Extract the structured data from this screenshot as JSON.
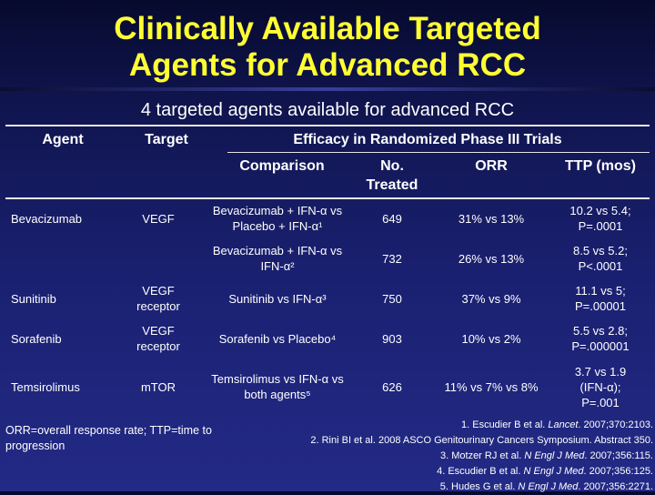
{
  "slide": {
    "title_line1": "Clinically Available Targeted",
    "title_line2": "Agents for Advanced RCC",
    "subtitle": "4 targeted agents available for advanced RCC"
  },
  "table": {
    "headers": {
      "agent": "Agent",
      "target": "Target",
      "efficacy": "Efficacy in Randomized Phase III Trials",
      "comparison": "Comparison",
      "no_treated_1": "No.",
      "no_treated_2": "Treated",
      "orr": "ORR",
      "ttp": "TTP (mos)"
    },
    "rows": [
      {
        "agent": "Bevacizumab",
        "target": "VEGF",
        "comparison_1": "Bevacizumab + IFN-α vs",
        "comparison_2": "Placebo + IFN-α¹",
        "treated": "649",
        "orr": "31% vs 13%",
        "ttp_1": "10.2 vs 5.4;",
        "ttp_2": "P=.0001"
      },
      {
        "agent": "",
        "target": "",
        "comparison_1": "Bevacizumab + IFN-α vs",
        "comparison_2": "IFN-α²",
        "treated": "732",
        "orr": "26% vs 13%",
        "ttp_1": "8.5 vs 5.2;",
        "ttp_2": "P<.0001"
      },
      {
        "agent": "Sunitinib",
        "target_1": "VEGF",
        "target_2": "receptor",
        "comparison": "Sunitinib vs IFN-α³",
        "treated": "750",
        "orr": "37% vs 9%",
        "ttp_1": "11.1 vs 5;",
        "ttp_2": "P=.00001"
      },
      {
        "agent": "Sorafenib",
        "target_1": "VEGF",
        "target_2": "receptor",
        "comparison": "Sorafenib vs Placebo⁴",
        "treated": "903",
        "orr": "10% vs 2%",
        "ttp_1": "5.5 vs 2.8;",
        "ttp_2": "P=.000001"
      },
      {
        "agent": "Temsirolimus",
        "target": "mTOR",
        "comparison_1": "Temsirolimus vs IFN-α vs",
        "comparison_2": "both agents⁵",
        "treated": "626",
        "orr": "11% vs 7% vs 8%",
        "ttp_1": "3.7 vs 1.9",
        "ttp_2": "(IFN-α);",
        "ttp_3": "P=.001"
      }
    ]
  },
  "footnote": "ORR=overall response rate; TTP=time to progression",
  "references": [
    {
      "pre": "1. Escudier B et al. ",
      "journal": "Lancet",
      "post": ". 2007;370:2103."
    },
    {
      "pre": "2. Rini BI et al. 2008 ASCO Genitourinary Cancers Symposium. Abstract 350.",
      "journal": "",
      "post": ""
    },
    {
      "pre": "3. Motzer RJ et al. ",
      "journal": "N Engl J Med",
      "post": ". 2007;356:115."
    },
    {
      "pre": "4. Escudier B et al. ",
      "journal": "N Engl J Med",
      "post": ". 2007;356:125."
    },
    {
      "pre": "5. Hudes G et al. ",
      "journal": "N Engl J Med",
      "post": ". 2007;356:2271."
    }
  ],
  "colors": {
    "title": "#ffff33",
    "background": "#1a2070",
    "text": "#ffffff"
  }
}
